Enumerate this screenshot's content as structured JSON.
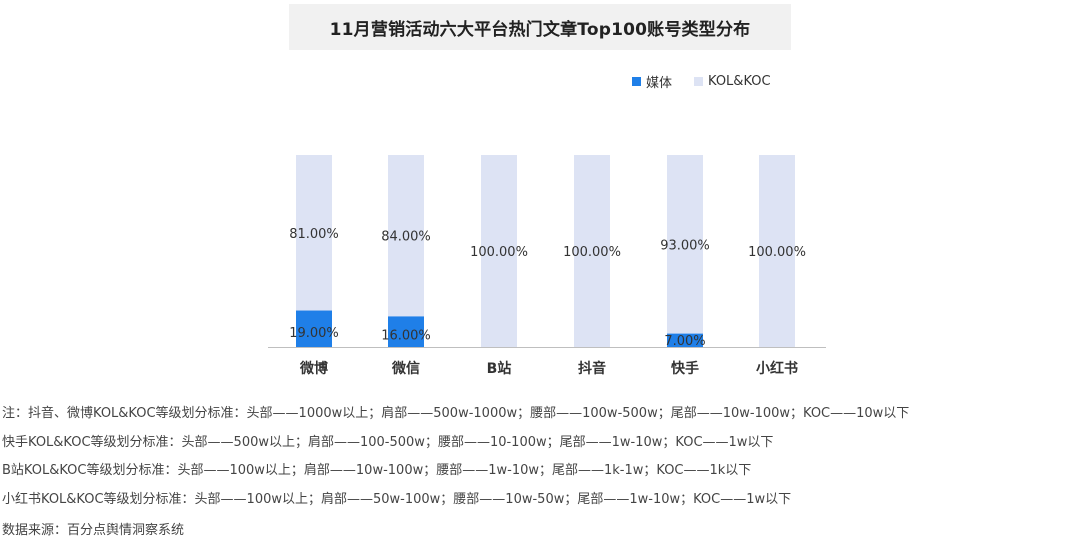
{
  "title": "11月营销活动六大平台热门文章Top100账号类型分布",
  "colors": {
    "media": "#1f7fe8",
    "kol": "#dde3f4",
    "axis": "#bfbfbf"
  },
  "chart_data": {
    "type": "bar",
    "stacked": true,
    "categories": [
      "微博",
      "微信",
      "B站",
      "抖音",
      "快手",
      "小红书"
    ],
    "series": [
      {
        "name": "媒体",
        "values": [
          19,
          16,
          0,
          0,
          7,
          0
        ],
        "labels": [
          "19.00%",
          "16.00%",
          "",
          "",
          "7.00%",
          ""
        ]
      },
      {
        "name": "KOL&KOC",
        "values": [
          81,
          84,
          100,
          100,
          93,
          100
        ],
        "labels": [
          "81.00%",
          "84.00%",
          "100.00%",
          "100.00%",
          "93.00%",
          "100.00%"
        ]
      }
    ],
    "ylim": [
      0,
      100
    ],
    "unit": "%",
    "grid": false,
    "legend": "top-right"
  },
  "notes": [
    "注：抖音、微博KOL&KOC等级划分标准：头部——1000w以上；肩部——500w-1000w；腰部——100w-500w；尾部——10w-100w；KOC——10w以下",
    "快手KOL&KOC等级划分标准：头部——500w以上；肩部——100-500w；腰部——10-100w；尾部——1w-10w；KOC——1w以下",
    "B站KOL&KOC等级划分标准：头部——100w以上；肩部——10w-100w；腰部——1w-10w；尾部——1k-1w；KOC——1k以下",
    "小红书KOL&KOC等级划分标准：头部——100w以上；肩部——50w-100w；腰部——10w-50w；尾部——1w-10w；KOC——1w以下"
  ],
  "source": "数据来源：百分点舆情洞察系统"
}
